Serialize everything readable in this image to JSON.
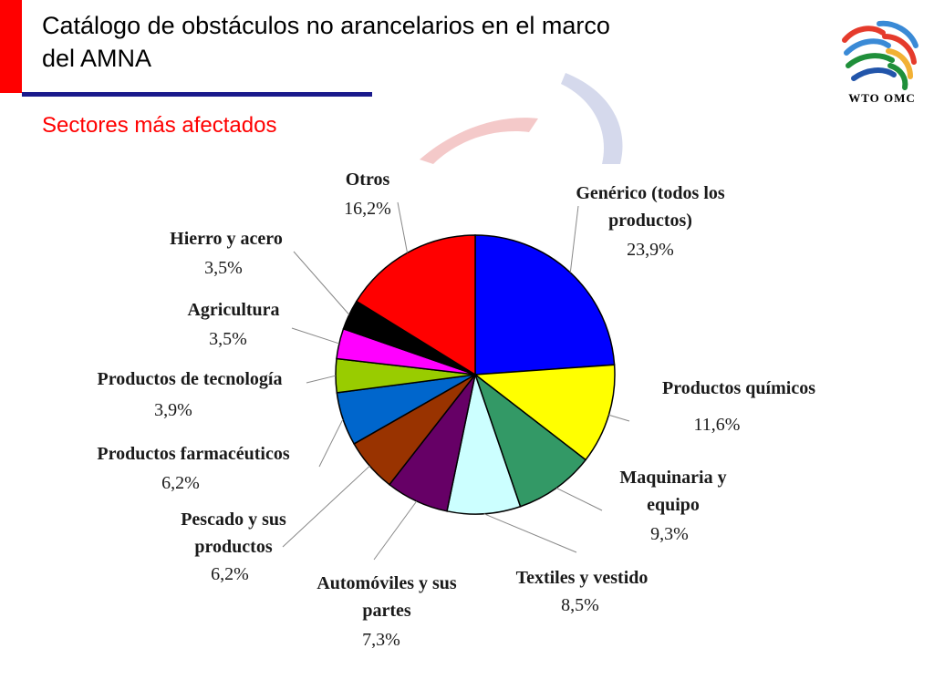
{
  "header": {
    "title_line1": "Catálogo de obstáculos no arancelarios en el marco",
    "title_line2": "del AMNA",
    "subtitle": "Sectores más afectados",
    "logo_text": "WTO OMC"
  },
  "colors": {
    "accent_red": "#ff0000",
    "rule_blue": "#1a1a8c"
  },
  "chart_data": {
    "type": "pie",
    "title": "Sectores más afectados",
    "slices": [
      {
        "label": "Genérico (todos los productos)",
        "label_lines": [
          "Genérico (todos los",
          "productos)"
        ],
        "value": 23.9,
        "display": "23,9%",
        "color": "#0000ff"
      },
      {
        "label": "Productos químicos",
        "label_lines": [
          "Productos químicos"
        ],
        "value": 11.6,
        "display": "11,6%",
        "color": "#ffff00"
      },
      {
        "label": "Maquinaria y equipo",
        "label_lines": [
          "Maquinaria y",
          "equipo"
        ],
        "value": 9.3,
        "display": "9,3%",
        "color": "#339966"
      },
      {
        "label": "Textiles y vestido",
        "label_lines": [
          "Textiles  y vestido"
        ],
        "value": 8.5,
        "display": "8,5%",
        "color": "#ccffff"
      },
      {
        "label": "Automóviles y sus partes",
        "label_lines": [
          "Automóviles y sus",
          "partes"
        ],
        "value": 7.3,
        "display": "7,3%",
        "color": "#660066"
      },
      {
        "label": "Pescado y sus productos",
        "label_lines": [
          "Pescado y sus",
          "productos"
        ],
        "value": 6.2,
        "display": "6,2%",
        "color": "#993300"
      },
      {
        "label": "Productos farmacéuticos",
        "label_lines": [
          "Productos farmacéuticos"
        ],
        "value": 6.2,
        "display": "6,2%",
        "color": "#0066cc"
      },
      {
        "label": "Productos de tecnología",
        "label_lines": [
          "Productos de tecnología"
        ],
        "value": 3.9,
        "display": "3,9%",
        "color": "#99cc00"
      },
      {
        "label": "Agricultura",
        "label_lines": [
          "Agricultura"
        ],
        "value": 3.5,
        "display": "3,5%",
        "color": "#ff00ff"
      },
      {
        "label": "Hierro y acero",
        "label_lines": [
          "Hierro y acero"
        ],
        "value": 3.5,
        "display": "3,5%",
        "color": "#000000"
      },
      {
        "label": "Otros",
        "label_lines": [
          "Otros"
        ],
        "value": 16.2,
        "display": "16,2%",
        "color": "#ff0000"
      }
    ]
  }
}
